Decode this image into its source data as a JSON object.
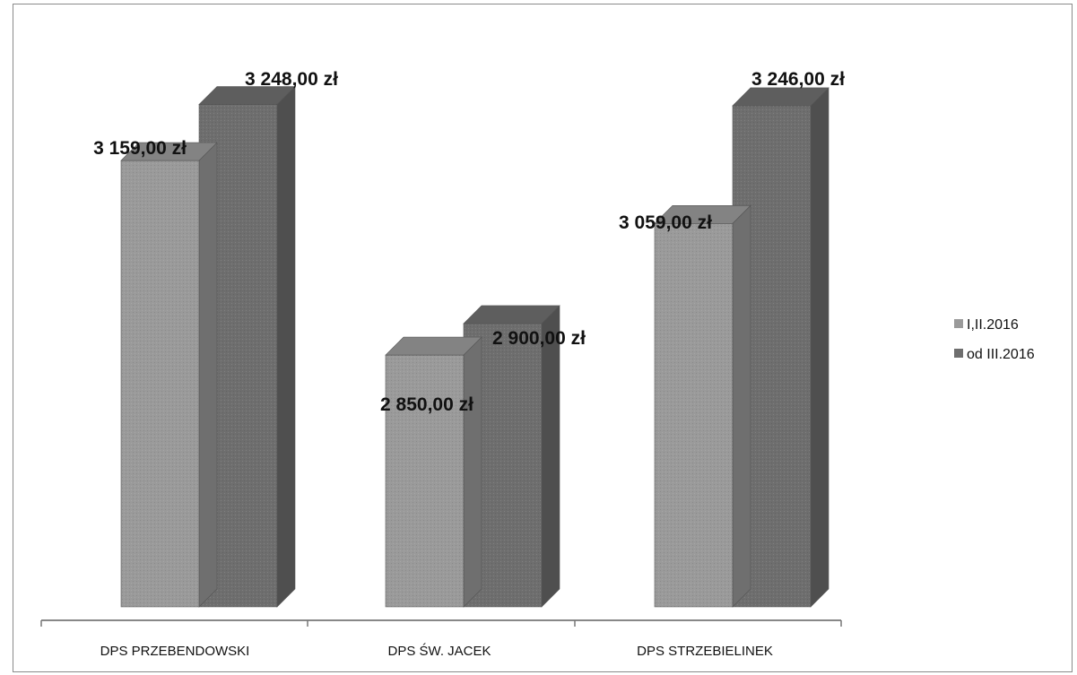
{
  "chart_data": {
    "type": "bar",
    "categories": [
      "DPS PRZEBENDOWSKI",
      "DPS ŚW. JACEK",
      "DPS STRZEBIELINEK"
    ],
    "series": [
      {
        "name": "I,II.2016",
        "values": [
          3159.0,
          2850.0,
          3059.0
        ],
        "labels": [
          "3 159,00 zł",
          "2 850,00 zł",
          "3 059,00 zł"
        ],
        "color": "#9a9a9a"
      },
      {
        "name": "od III.2016",
        "values": [
          3248.0,
          2900.0,
          3246.0
        ],
        "labels": [
          "3 248,00 zł",
          "2 900,00 zł",
          "3 246,00 zł"
        ],
        "color": "#6e6e6e"
      }
    ],
    "ylim": [
      2450,
      3300
    ],
    "grid": false,
    "legend": "right",
    "bar_style": "3d"
  }
}
